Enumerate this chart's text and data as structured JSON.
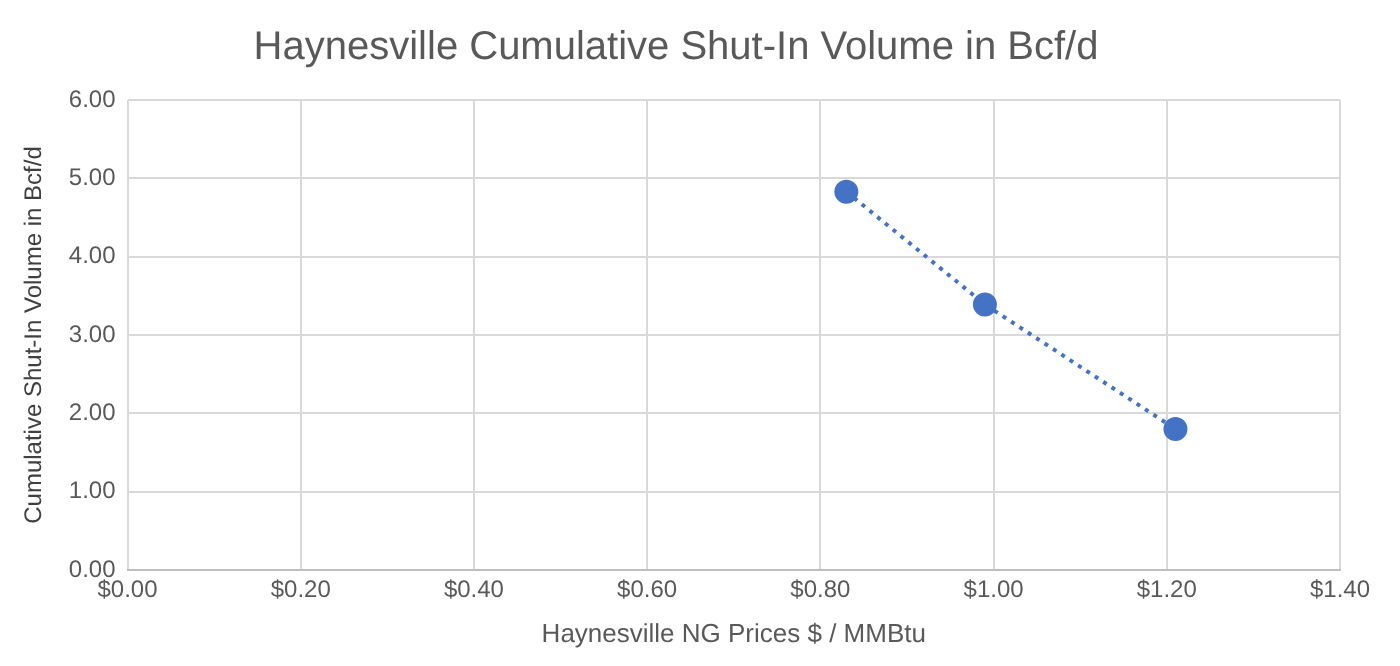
{
  "chart_data": {
    "type": "line",
    "title": "Haynesville Cumulative Shut-In Volume in Bcf/d",
    "xlabel": "Haynesville NG Prices $ / MMBtu",
    "ylabel": "Cumulative Shut-In Volume in Bcf/d",
    "series": [
      {
        "x": [
          0.83,
          0.99,
          1.21
        ],
        "values": [
          4.83,
          3.39,
          1.8
        ],
        "color": "#4472c4"
      }
    ],
    "xlim": [
      0,
      1.4
    ],
    "xticks": [
      {
        "value": 0,
        "label": "$0.00"
      },
      {
        "value": 0.2,
        "label": "$0.20"
      },
      {
        "value": 0.4,
        "label": "$0.40"
      },
      {
        "value": 0.6,
        "label": "$0.60"
      },
      {
        "value": 0.8,
        "label": "$0.80"
      },
      {
        "value": 1,
        "label": "$1.00"
      },
      {
        "value": 1.2,
        "label": "$1.20"
      },
      {
        "value": 1.4,
        "label": "$1.40"
      }
    ],
    "ylim": [
      0,
      6
    ],
    "yticks": [
      {
        "value": 0,
        "label": "0.00"
      },
      {
        "value": 1,
        "label": "1.00"
      },
      {
        "value": 2,
        "label": "2.00"
      },
      {
        "value": 3,
        "label": "3.00"
      },
      {
        "value": 4,
        "label": "4.00"
      },
      {
        "value": 5,
        "label": "5.00"
      },
      {
        "value": 6,
        "label": "6.00"
      }
    ],
    "grid": true,
    "marker": "circle",
    "line_style": "dotted",
    "legend": false
  }
}
